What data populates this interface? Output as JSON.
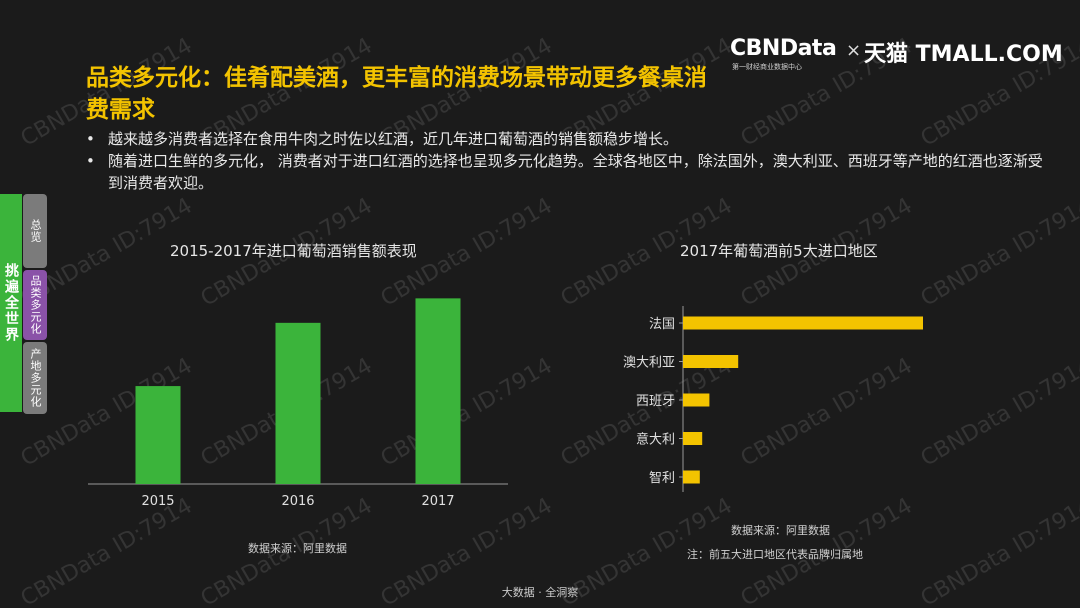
{
  "watermark": "CBNData ID:7914",
  "title": "品类多元化：佳肴配美酒，更丰富的消费场景带动更多餐桌消费需求",
  "brand": {
    "left": "CBNData",
    "sub": "第一财经商业数据中心",
    "x": "×",
    "right": "天猫 TMALL.COM"
  },
  "bullets": [
    "越来越多消费者选择在食用牛肉之时佐以红酒，近几年进口葡萄酒的销售额稳步增长。",
    "随着进口生鲜的多元化， 消费者对于进口红酒的选择也呈现多元化趋势。全球各地区中，除法国外，澳大利亚、西班牙等产地的红酒也逐渐受到消费者欢迎。"
  ],
  "sidebar": {
    "main": "挑遍全世界",
    "tabs": [
      "总览",
      "品类多元化",
      "产地多元化"
    ]
  },
  "colors": {
    "accent": "#f3c300",
    "green": "#3bb43b",
    "purple": "#8a52a8"
  },
  "chart_data": [
    {
      "type": "bar",
      "title": "2015-2017年进口葡萄酒销售额表现",
      "categories": [
        "2015",
        "2016",
        "2017"
      ],
      "values": [
        48,
        79,
        91
      ],
      "ylim": [
        0,
        100
      ],
      "source": "数据来源：阿里数据"
    },
    {
      "type": "bar",
      "orientation": "horizontal",
      "title": "2017年葡萄酒前5大进口地区",
      "categories": [
        "法国",
        "澳大利亚",
        "西班牙",
        "意大利",
        "智利"
      ],
      "values": [
        100,
        23,
        11,
        8,
        7
      ],
      "xlim": [
        0,
        100
      ],
      "source": "数据来源：阿里数据",
      "note": "注：前五大进口地区代表品牌归属地"
    }
  ],
  "footer": "大数据 · 全洞察"
}
